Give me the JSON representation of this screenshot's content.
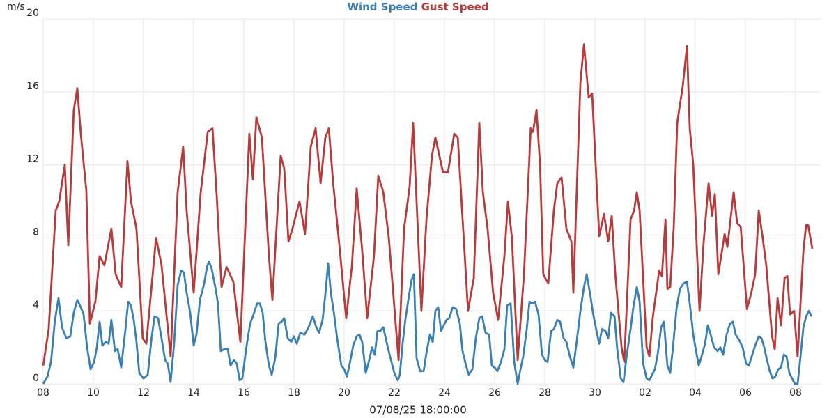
{
  "chart_data": {
    "type": "line",
    "y_unit": "m/s",
    "x_label": "07/08/25 18:00:00",
    "xlim": [
      0,
      31
    ],
    "xticks": [
      {
        "value": 0,
        "label": "08"
      },
      {
        "value": 2,
        "label": "10"
      },
      {
        "value": 4,
        "label": "12"
      },
      {
        "value": 6,
        "label": "14"
      },
      {
        "value": 8,
        "label": "16"
      },
      {
        "value": 10,
        "label": "18"
      },
      {
        "value": 12,
        "label": "20"
      },
      {
        "value": 14,
        "label": "22"
      },
      {
        "value": 16,
        "label": "24"
      },
      {
        "value": 18,
        "label": "26"
      },
      {
        "value": 20,
        "label": "28"
      },
      {
        "value": 22,
        "label": "30"
      },
      {
        "value": 24,
        "label": "02"
      },
      {
        "value": 26,
        "label": "04"
      },
      {
        "value": 28,
        "label": "06"
      },
      {
        "value": 30,
        "label": "08"
      }
    ],
    "ylim": [
      0,
      20
    ],
    "yticks": [
      0,
      4,
      8,
      12,
      16,
      20
    ],
    "grid": true,
    "series": [
      {
        "name": "Wind Speed",
        "color": "#3a7fb5",
        "x": [
          0,
          0.17,
          0.31,
          0.47,
          0.61,
          0.75,
          0.92,
          1.08,
          1.22,
          1.36,
          1.5,
          1.61,
          1.75,
          1.89,
          2.03,
          2.14,
          2.25,
          2.36,
          2.5,
          2.61,
          2.72,
          2.86,
          2.97,
          3.11,
          3.28,
          3.39,
          3.5,
          3.61,
          3.72,
          3.83,
          4,
          4.17,
          4.31,
          4.44,
          4.58,
          4.72,
          4.86,
          4.97,
          5.08,
          5.22,
          5.36,
          5.5,
          5.61,
          5.72,
          5.86,
          6,
          6.11,
          6.25,
          6.42,
          6.53,
          6.61,
          6.72,
          6.86,
          6.97,
          7.08,
          7.22,
          7.36,
          7.47,
          7.61,
          7.72,
          7.83,
          7.94,
          8.11,
          8.25,
          8.36,
          8.53,
          8.64,
          8.75,
          8.86,
          9,
          9.11,
          9.25,
          9.39,
          9.5,
          9.61,
          9.75,
          9.89,
          10,
          10.11,
          10.25,
          10.42,
          10.58,
          10.75,
          10.89,
          11,
          11.14,
          11.25,
          11.36,
          11.47,
          11.61,
          11.72,
          11.89,
          12,
          12.11,
          12.25,
          12.36,
          12.5,
          12.61,
          12.72,
          12.86,
          13,
          13.11,
          13.22,
          13.33,
          13.44,
          13.56,
          13.69,
          13.83,
          14,
          14.14,
          14.22,
          14.33,
          14.44,
          14.58,
          14.69,
          14.78,
          14.89,
          15.03,
          15.17,
          15.28,
          15.42,
          15.53,
          15.64,
          15.75,
          15.86,
          15.97,
          16.08,
          16.19,
          16.33,
          16.47,
          16.61,
          16.72,
          16.86,
          16.97,
          17.11,
          17.25,
          17.39,
          17.5,
          17.64,
          17.78,
          17.89,
          18,
          18.11,
          18.25,
          18.39,
          18.5,
          18.64,
          18.78,
          18.92,
          19.03,
          19.14,
          19.28,
          19.39,
          19.5,
          19.61,
          19.75,
          19.89,
          20,
          20.11,
          20.25,
          20.36,
          20.5,
          20.61,
          20.75,
          20.86,
          21,
          21.14,
          21.28,
          21.42,
          21.56,
          21.67,
          21.81,
          21.92,
          22.06,
          22.17,
          22.28,
          22.42,
          22.53,
          22.64,
          22.78,
          22.89,
          23.03,
          23.14,
          23.28,
          23.42,
          23.53,
          23.67,
          23.78,
          23.92,
          24.06,
          24.17,
          24.28,
          24.39,
          24.5,
          24.64,
          24.75,
          24.89,
          25,
          25.11,
          25.25,
          25.39,
          25.53,
          25.67,
          25.78,
          25.92,
          26.03,
          26.14,
          26.25,
          26.39,
          26.5,
          26.61,
          26.75,
          26.89,
          27,
          27.11,
          27.25,
          27.39,
          27.5,
          27.61,
          27.75,
          27.89,
          28.03,
          28.14,
          28.25,
          28.39,
          28.53,
          28.64,
          28.75,
          28.86,
          28.97,
          29.08,
          29.19,
          29.31,
          29.42,
          29.53,
          29.64,
          29.75,
          29.86,
          29.97,
          30.08,
          30.19,
          30.31,
          30.42,
          30.53,
          30.64
        ],
        "values": [
          0,
          0.4,
          1.2,
          3.5,
          4.7,
          3.1,
          2.5,
          2.6,
          3.9,
          4.6,
          4.2,
          3.8,
          2,
          0.8,
          1.2,
          2,
          3.4,
          2.1,
          2.3,
          2.2,
          3.5,
          1.8,
          1.9,
          0.9,
          3,
          4.5,
          4.3,
          3.5,
          2.3,
          0.6,
          0.3,
          0.5,
          2.4,
          3.7,
          3.6,
          2.5,
          1.3,
          1.1,
          0.1,
          2.2,
          5.4,
          6.2,
          6.1,
          5,
          3.9,
          2.1,
          2.7,
          4.6,
          5.5,
          6.4,
          6.7,
          6.3,
          5.3,
          4.4,
          1.8,
          1.9,
          1.9,
          1,
          1.3,
          1.1,
          0.2,
          0.3,
          2.1,
          3.3,
          3.7,
          4.4,
          4.4,
          3.9,
          2.3,
          1,
          0.5,
          1.4,
          3.3,
          3.4,
          3.6,
          2.5,
          2.3,
          2.6,
          2.2,
          2.8,
          2.7,
          3.1,
          3.7,
          3.1,
          2.8,
          3.5,
          4.9,
          6.6,
          5,
          3.7,
          2.5,
          1,
          0.8,
          0.4,
          1.3,
          2.1,
          2.6,
          2.7,
          2.3,
          0.6,
          1.3,
          2,
          1.6,
          2.9,
          2.9,
          3.1,
          2.3,
          1.5,
          0.6,
          0.2,
          0.5,
          2.2,
          3.5,
          4.8,
          5.7,
          6,
          1.4,
          0.7,
          0.7,
          1.7,
          2.7,
          2.3,
          4,
          4.2,
          2.9,
          3.2,
          3.5,
          3.6,
          4.2,
          4.1,
          3.3,
          1.8,
          1,
          0.5,
          0.8,
          2.5,
          3.6,
          3.7,
          2.8,
          2.7,
          1,
          0.9,
          0.7,
          1.2,
          1.9,
          4.3,
          4.4,
          1.2,
          0,
          0.8,
          1.5,
          3,
          4.5,
          4.4,
          4.5,
          3.8,
          1.6,
          1.3,
          1.2,
          2.9,
          3,
          3.5,
          3.4,
          2.5,
          2.3,
          1.5,
          0.9,
          2.4,
          4,
          5.3,
          6,
          4.9,
          3.9,
          2.9,
          2.2,
          3,
          2.9,
          2.5,
          3.9,
          3.7,
          1.9,
          0.3,
          0.1,
          1.7,
          3,
          4.2,
          5.3,
          4.5,
          1.1,
          0.3,
          0.2,
          0.5,
          0.8,
          1.6,
          3.1,
          3.4,
          1,
          0.6,
          2,
          4.1,
          5.2,
          5.5,
          5.6,
          4.4,
          2.7,
          1.8,
          1,
          1.5,
          2.2,
          3.2,
          2.7,
          2,
          1.8,
          2,
          1.6,
          2.7,
          3.3,
          3.4,
          2.7,
          2.4,
          2,
          1.1,
          1,
          1.5,
          2.1,
          2.6,
          2.5,
          2,
          1.3,
          0.7,
          0.3,
          0.4,
          0.8,
          0.9,
          1.6,
          1.5,
          0.6,
          0.3,
          0,
          0,
          1.4,
          3.1,
          3.7,
          4,
          3.7
        ]
      },
      {
        "name": "Gust Speed",
        "color": "#b83a3a",
        "x": [
          0,
          0.22,
          0.5,
          0.64,
          0.86,
          1,
          1.22,
          1.36,
          1.5,
          1.72,
          1.86,
          2.08,
          2.25,
          2.44,
          2.72,
          2.89,
          3.11,
          3.36,
          3.5,
          3.72,
          3.97,
          4.11,
          4.5,
          4.72,
          5.08,
          5.36,
          5.58,
          5.72,
          6,
          6.28,
          6.56,
          6.75,
          6.92,
          7.11,
          7.31,
          7.58,
          7.86,
          8.22,
          8.36,
          8.5,
          8.72,
          9,
          9.14,
          9.47,
          9.61,
          9.78,
          9.94,
          10.22,
          10.44,
          10.67,
          10.86,
          11.06,
          11.25,
          11.39,
          11.56,
          11.78,
          12.08,
          12.31,
          12.5,
          12.72,
          12.92,
          13.19,
          13.36,
          13.56,
          13.78,
          14.17,
          14.39,
          14.61,
          14.75,
          15.08,
          15.28,
          15.5,
          15.64,
          15.94,
          16.14,
          16.39,
          16.53,
          16.94,
          17.17,
          17.39,
          17.53,
          17.72,
          17.94,
          18.14,
          18.39,
          18.53,
          18.69,
          18.92,
          19.17,
          19.44,
          19.53,
          19.67,
          19.81,
          19.94,
          20.14,
          20.36,
          20.5,
          20.67,
          20.86,
          21.06,
          21.14,
          21.42,
          21.56,
          21.75,
          21.89,
          22.17,
          22.36,
          22.53,
          22.67,
          22.81,
          23.06,
          23.17,
          23.42,
          23.56,
          23.67,
          23.78,
          24.06,
          24.17,
          24.31,
          24.56,
          24.67,
          24.81,
          24.89,
          25,
          25.14,
          25.28,
          25.5,
          25.67,
          25.78,
          25.92,
          26.17,
          26.33,
          26.53,
          26.67,
          26.78,
          26.92,
          27.17,
          27.28,
          27.53,
          27.67,
          27.81,
          28.06,
          28.22,
          28.39,
          28.53,
          28.69,
          28.83,
          29.06,
          29.17,
          29.28,
          29.42,
          29.56,
          29.67,
          29.78,
          29.94,
          30.08,
          30.31,
          30.42,
          30.5,
          30.67
        ],
        "values": [
          1,
          3,
          9.5,
          10,
          12,
          7.6,
          15,
          16.2,
          13.7,
          10.6,
          3.3,
          4.5,
          7,
          6.5,
          8.5,
          6,
          5.3,
          12.2,
          10,
          8.5,
          2.5,
          2.2,
          8,
          6.5,
          1.5,
          10.5,
          13,
          9.5,
          5,
          10.5,
          13.8,
          14,
          10.3,
          5.3,
          6.4,
          5.6,
          2.3,
          13.7,
          11.2,
          14.6,
          13.5,
          7,
          4.6,
          12.5,
          11.8,
          7.8,
          8.5,
          10,
          8.2,
          13,
          14,
          11,
          13.5,
          14,
          11,
          8,
          3.6,
          6.5,
          10.7,
          7.3,
          3.6,
          7,
          11.4,
          10.5,
          8,
          1.3,
          8.5,
          10.8,
          14.3,
          4,
          9,
          12.5,
          13.5,
          11.6,
          11.6,
          13.7,
          13.5,
          4,
          5.8,
          14.3,
          10.5,
          8.5,
          5,
          3.5,
          7,
          10,
          8,
          1.3,
          6,
          14,
          13.8,
          15,
          12,
          6,
          5.5,
          9.5,
          11,
          11.3,
          8.5,
          7.8,
          5,
          16.5,
          18.6,
          15.7,
          15.9,
          8.1,
          9.3,
          7.8,
          9.2,
          6,
          2,
          1.2,
          9,
          9.5,
          10.5,
          9.5,
          2,
          1.5,
          3.7,
          6.2,
          5.9,
          9,
          5.2,
          5.3,
          8.5,
          14.3,
          16.3,
          18.5,
          14,
          12,
          4,
          7.7,
          11,
          9.2,
          10.4,
          6,
          8.2,
          7.5,
          10.5,
          8.8,
          8.6,
          4.1,
          4.9,
          6,
          9.5,
          8,
          6.5,
          2.6,
          1.9,
          4.7,
          3.2,
          5.8,
          5.9,
          3.8,
          4,
          1.5,
          7.3,
          8.7,
          8.7,
          7.4
        ]
      }
    ]
  }
}
